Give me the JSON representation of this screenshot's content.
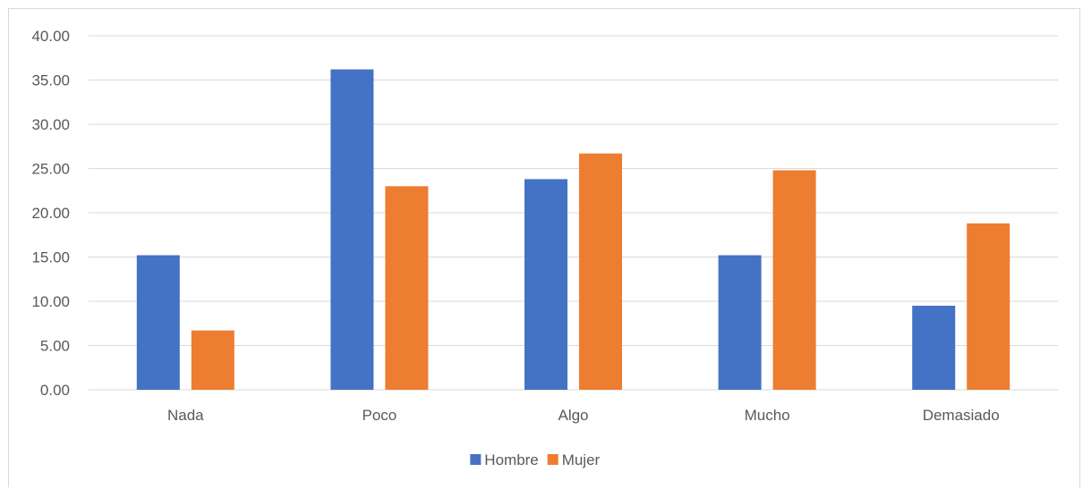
{
  "chart_data": {
    "type": "bar",
    "title": "",
    "xlabel": "",
    "ylabel": "",
    "categories": [
      "Nada",
      "Poco",
      "Algo",
      "Mucho",
      "Demasiado"
    ],
    "series": [
      {
        "name": "Hombre",
        "color": "#4472C4",
        "values": [
          15.2,
          36.2,
          23.8,
          15.2,
          9.5
        ]
      },
      {
        "name": "Mujer",
        "color": "#ED7D31",
        "values": [
          6.7,
          23.0,
          26.7,
          24.8,
          18.8
        ]
      }
    ],
    "ylim": [
      0,
      40
    ],
    "yticks": [
      "0.00",
      "5.00",
      "10.00",
      "15.00",
      "20.00",
      "25.00",
      "30.00",
      "35.00",
      "40.00"
    ],
    "grid": true,
    "legend_position": "bottom"
  }
}
